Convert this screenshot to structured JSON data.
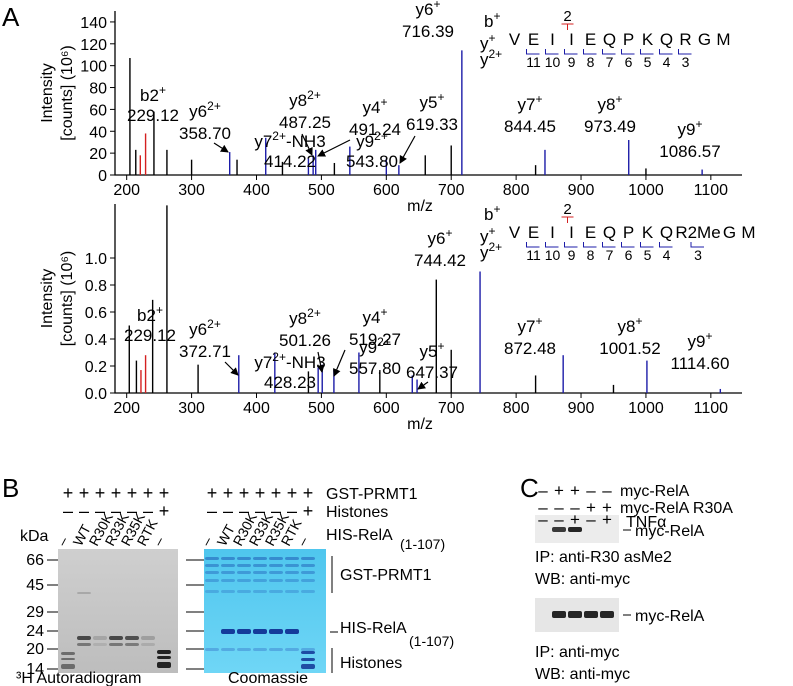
{
  "panel_labels": [
    "A",
    "B",
    "C"
  ],
  "chart_data": [
    {
      "type": "spectrum",
      "ylabel": "Intensity",
      "ylabel_unit": "[counts] (10⁶)",
      "xlabel": "m/z",
      "xlim": [
        182,
        1148
      ],
      "ylim": [
        0,
        150
      ],
      "xticks": [
        200,
        300,
        400,
        500,
        600,
        700,
        800,
        900,
        1000,
        1100
      ],
      "yticks": [
        0,
        20,
        40,
        60,
        80,
        100,
        120,
        140
      ],
      "series": [
        {
          "color": "#1c1ca8",
          "x": [
            358.7,
            414.22,
            480,
            487.25,
            491.24,
            543.8,
            600,
            619.33,
            716.39,
            844.45,
            973.49,
            1086.57
          ],
          "values": [
            21,
            34,
            15,
            18,
            23,
            26,
            15,
            9,
            114,
            23,
            32,
            5
          ],
          "labels": [
            {
              "ion": "y6",
              "sup": "2+",
              "mz": "358.70"
            },
            {
              "ion": "y7",
              "sup": "2+",
              "suffix": "-NH3",
              "mz": "414.22"
            },
            null,
            {
              "ion": "y8",
              "sup": "2+",
              "mz": "487.25"
            },
            {
              "ion": "y4",
              "sup": "+",
              "mz": "491.24"
            },
            {
              "ion": "y9",
              "sup": "2+",
              "mz": "543.80"
            },
            null,
            {
              "ion": "y5",
              "sup": "+",
              "mz": "619.33"
            },
            {
              "ion": "y6",
              "sup": "+",
              "mz": "716.39"
            },
            {
              "ion": "y7",
              "sup": "+",
              "mz": "844.45"
            },
            {
              "ion": "y8",
              "sup": "+",
              "mz": "973.49"
            },
            {
              "ion": "y9",
              "sup": "+",
              "mz": "1086.57"
            }
          ]
        },
        {
          "color": "#d42020",
          "x": [
            221,
            229.12
          ],
          "values": [
            18,
            38
          ],
          "labels": [
            null,
            {
              "ion": "b2",
              "sup": "+",
              "mz": "229.12"
            }
          ]
        },
        {
          "color": "#000000",
          "x": [
            205,
            214,
            242,
            262,
            300,
            370,
            440,
            520,
            660,
            700,
            830,
            1000
          ],
          "values": [
            107,
            23,
            58,
            23,
            14,
            14,
            12,
            11,
            18,
            27,
            9,
            6
          ]
        }
      ],
      "b_ion": {
        "ion": "b",
        "sup": "+"
      },
      "b_number": 2,
      "y_ion": {
        "ion": "y",
        "sup": "+"
      },
      "y2_ion": {
        "ion": "y",
        "sup": "2+"
      },
      "sequence": [
        "V",
        "E",
        "I",
        "I",
        "E",
        "Q",
        "P",
        "K",
        "Q",
        "R",
        "G",
        "M"
      ],
      "y_numbers": [
        11,
        10,
        9,
        8,
        7,
        6,
        5,
        4,
        3
      ]
    },
    {
      "type": "spectrum",
      "ylabel": "Intensity",
      "ylabel_unit": "[counts] (10⁶)",
      "xlabel": "m/z",
      "xlim": [
        182,
        1148
      ],
      "ylim": [
        0,
        1.4
      ],
      "xticks": [
        200,
        300,
        400,
        500,
        600,
        700,
        800,
        900,
        1000,
        1100
      ],
      "yticks": [
        {
          "value": 0,
          "label": "0.0"
        },
        0.2,
        0.4,
        0.6,
        0.8,
        {
          "value": 1,
          "label": "1.0"
        }
      ],
      "series": [
        {
          "color": "#1c1ca8",
          "x": [
            372.71,
            428.23,
            495,
            501.26,
            519.27,
            557.8,
            640,
            647.37,
            744.42,
            872.48,
            1001.52,
            1114.6
          ],
          "values": [
            0.28,
            0.3,
            0.19,
            0.21,
            0.17,
            0.3,
            0.13,
            0.1,
            0.9,
            0.28,
            0.24,
            0.03
          ],
          "labels": [
            {
              "ion": "y6",
              "sup": "2+",
              "mz": "372.71"
            },
            {
              "ion": "y7",
              "sup": "2+",
              "suffix": "-NH3",
              "mz": "428.23"
            },
            null,
            {
              "ion": "y8",
              "sup": "2+",
              "mz": "501.26"
            },
            {
              "ion": "y4",
              "sup": "+",
              "mz": "519.27"
            },
            {
              "ion": "y9",
              "sup": "2+",
              "mz": "557.80"
            },
            null,
            {
              "ion": "y5",
              "sup": "+",
              "mz": "647.37"
            },
            {
              "ion": "y6",
              "sup": "+",
              "mz": "744.42"
            },
            {
              "ion": "y7",
              "sup": "+",
              "mz": "872.48"
            },
            {
              "ion": "y8",
              "sup": "+",
              "mz": "1001.52"
            },
            {
              "ion": "y9",
              "sup": "+",
              "mz": "1114.60"
            }
          ]
        },
        {
          "color": "#d42020",
          "x": [
            222,
            229.12
          ],
          "values": [
            0.17,
            0.28
          ],
          "labels": [
            null,
            {
              "ion": "b2",
              "sup": "+",
              "mz": "229.12"
            }
          ]
        },
        {
          "color": "#000000",
          "x": [
            204,
            215,
            240,
            262,
            310,
            480,
            590,
            677,
            700,
            830,
            950
          ],
          "values": [
            0.5,
            0.24,
            0.69,
            1.39,
            0.21,
            0.16,
            0.17,
            0.84,
            0.32,
            0.13,
            0.06
          ]
        }
      ],
      "b_ion": {
        "ion": "b",
        "sup": "+"
      },
      "b_number": 2,
      "y_ion": {
        "ion": "y",
        "sup": "+"
      },
      "y2_ion": {
        "ion": "y",
        "sup": "2+"
      },
      "sequence": [
        "V",
        "E",
        "I",
        "I",
        "E",
        "Q",
        "P",
        "K",
        "Q",
        "R2Me",
        "G",
        "M"
      ],
      "y_numbers": [
        11,
        10,
        9,
        8,
        7,
        6,
        5,
        4,
        3
      ]
    }
  ],
  "panel_b": {
    "left_signs": [
      [
        "+",
        "+",
        "+",
        "+",
        "+",
        "+",
        "+"
      ],
      [
        "–",
        "–",
        "–",
        "–",
        "–",
        "–",
        "+"
      ]
    ],
    "right_signs": [
      [
        "+",
        "+",
        "+",
        "+",
        "+",
        "+",
        "+"
      ],
      [
        "–",
        "–",
        "–",
        "–",
        "–",
        "–",
        "+"
      ]
    ],
    "row_labels": [
      "GST-PRMT1",
      "Histones",
      "HIS-RelA"
    ],
    "rela_subscript": "(1-107)",
    "kda": "kDa",
    "markers": [
      66,
      45,
      29,
      24,
      20,
      14
    ],
    "lanes": [
      "–",
      "WT",
      "R30K",
      "R33K",
      "R35K",
      "RTK",
      "–"
    ],
    "lane_colors": [
      "#000000",
      "#000000",
      "#d42020",
      "#000000",
      "#000000",
      "#000000",
      "#000000"
    ],
    "right_labels": [
      "GST-PRMT1",
      "HIS-RelA",
      "(1-107)",
      "Histones"
    ],
    "captions": [
      "³H Autoradiogram",
      "Coomassie"
    ]
  },
  "panel_c": {
    "signs": [
      [
        "–",
        "+",
        "+",
        "–",
        "–"
      ],
      [
        "–",
        "–",
        "–",
        "+",
        "+"
      ],
      [
        "–",
        "–",
        "+",
        "–",
        "+"
      ]
    ],
    "row_labels": [
      "myc-RelA",
      "myc-RelA R30A",
      "TNFα"
    ],
    "blot_labels": [
      "myc-RelA",
      "myc-RelA"
    ],
    "captions": [
      "IP: anti-R30 asMe2",
      "WB: anti-myc",
      "IP: anti-myc",
      "WB: anti-myc"
    ]
  }
}
